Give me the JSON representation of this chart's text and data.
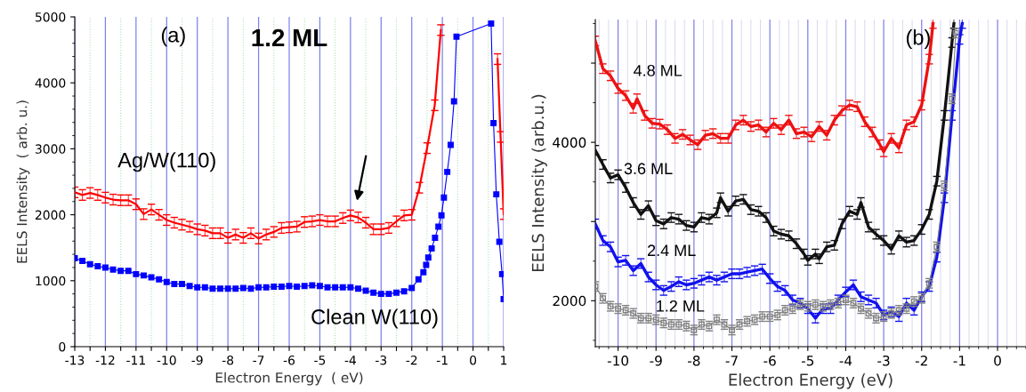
{
  "chart_data": [
    {
      "type": "line",
      "title": "1.2 ML",
      "xlabel": "Electron Energy  ( eV)",
      "ylabel": "EELS Intensity  ( arb. u.)",
      "xlim": [
        -13,
        1
      ],
      "ylim": [
        0,
        5000
      ],
      "xticks": [
        -13,
        {
          "value": -12.5,
          "label": null
        },
        -12,
        {
          "value": -11.5,
          "label": null
        },
        -11,
        {
          "value": -10.5,
          "label": null
        },
        -10,
        {
          "value": -9.5,
          "label": null
        },
        -9,
        {
          "value": -8.5,
          "label": null
        },
        -8,
        {
          "value": -7.5,
          "label": null
        },
        -7,
        {
          "value": -6.5,
          "label": null
        },
        -6,
        {
          "value": -5.5,
          "label": null
        },
        -5,
        {
          "value": -4.5,
          "label": null
        },
        -4,
        {
          "value": -3.5,
          "label": null
        },
        -3,
        {
          "value": -2.5,
          "label": null
        },
        -2,
        {
          "value": -1.5,
          "label": null
        },
        -1,
        {
          "value": -0.5,
          "label": null
        },
        0,
        {
          "value": 0.5,
          "label": null
        },
        1
      ],
      "yticks": [
        0,
        1000,
        2000,
        3000,
        4000,
        5000
      ],
      "grid": "x",
      "legend": false,
      "annotations": [
        "(a)",
        "Ag/W(110)",
        "Clean W(110)"
      ],
      "series": [
        {
          "color": "#ff0000",
          "marker": "none",
          "line_style": "solid",
          "x": [
            -13,
            -12.75,
            -12.5,
            -12.25,
            -12,
            -11.75,
            -11.5,
            -11.25,
            -11,
            -10.75,
            -10.5,
            -10.25,
            -10,
            -9.75,
            -9.5,
            -9.25,
            -9,
            -8.75,
            -8.5,
            -8.25,
            -8,
            -7.75,
            -7.5,
            -7.25,
            -7,
            -6.75,
            -6.5,
            -6.25,
            -6,
            -5.75,
            -5.5,
            -5.25,
            -5,
            -4.75,
            -4.5,
            -4.25,
            -4,
            -3.75,
            -3.5,
            -3.25,
            -3,
            -2.75,
            -2.5,
            -2.25,
            -2,
            -1.75,
            -1.5,
            -1.25,
            -1.05,
            0,
            0.8,
            0.9,
            1.0
          ],
          "values": [
            2340,
            2300,
            2330,
            2300,
            2260,
            2230,
            2220,
            2220,
            2160,
            2010,
            2080,
            2000,
            1920,
            1880,
            1850,
            1820,
            1780,
            1760,
            1720,
            1720,
            1650,
            1700,
            1650,
            1720,
            1640,
            1700,
            1740,
            1800,
            1810,
            1820,
            1890,
            1900,
            1920,
            1900,
            1900,
            1950,
            1990,
            1960,
            1880,
            1780,
            1780,
            1800,
            1900,
            1990,
            2000,
            2410,
            3010,
            3660,
            4800,
            null,
            4360,
            3180,
            2010
          ],
          "errors": [
            80,
            80,
            80,
            80,
            80,
            80,
            80,
            80,
            80,
            80,
            80,
            80,
            80,
            80,
            80,
            80,
            80,
            80,
            80,
            80,
            80,
            80,
            80,
            80,
            80,
            80,
            80,
            80,
            80,
            80,
            80,
            80,
            80,
            80,
            80,
            80,
            80,
            80,
            80,
            80,
            80,
            80,
            80,
            80,
            80,
            80,
            80,
            80,
            80,
            null,
            80,
            80,
            80
          ]
        },
        {
          "color": "#0000ff",
          "marker": "square",
          "line_style": "solid",
          "x": [
            -13,
            -12.75,
            -12.5,
            -12.25,
            -12,
            -11.75,
            -11.5,
            -11.25,
            -11,
            -10.75,
            -10.5,
            -10.25,
            -10,
            -9.75,
            -9.5,
            -9.25,
            -9,
            -8.75,
            -8.5,
            -8.25,
            -8,
            -7.75,
            -7.5,
            -7.25,
            -7,
            -6.75,
            -6.5,
            -6.25,
            -6,
            -5.75,
            -5.5,
            -5.25,
            -5,
            -4.75,
            -4.5,
            -4.25,
            -4,
            -3.75,
            -3.5,
            -3.25,
            -3,
            -2.75,
            -2.5,
            -2.25,
            -2,
            -1.78,
            -1.62,
            -1.53,
            -1.46,
            -1.35,
            -1.24,
            -1.13,
            -1.03,
            -0.95,
            -0.84,
            -0.73,
            -0.62,
            -0.54,
            0.59,
            0.67,
            0.76,
            0.86,
            0.95,
            1.0
          ],
          "values": [
            1340,
            1300,
            1250,
            1220,
            1200,
            1170,
            1150,
            1150,
            1100,
            1080,
            1050,
            1020,
            980,
            950,
            950,
            920,
            900,
            900,
            880,
            880,
            880,
            880,
            890,
            880,
            900,
            900,
            910,
            910,
            920,
            910,
            920,
            930,
            920,
            900,
            900,
            900,
            900,
            880,
            850,
            820,
            800,
            800,
            820,
            840,
            890,
            1020,
            1130,
            1240,
            1350,
            1490,
            1650,
            1820,
            1990,
            2260,
            2650,
            3060,
            3720,
            4700,
            4900,
            3390,
            2310,
            1590,
            1100,
            720
          ]
        }
      ]
    },
    {
      "type": "line",
      "xlabel": "Electron Energy (eV)",
      "ylabel": "EELS Intensity (arb.u.)",
      "xlim": [
        -10.6,
        0.75
      ],
      "ylim": [
        1420,
        5550
      ],
      "xticks": [
        -10,
        -9,
        -8,
        -7,
        -6,
        -5,
        -4,
        -3,
        -2,
        -1,
        0
      ],
      "yticks": [
        2000,
        {
          "value": 3000,
          "label": null
        },
        4000,
        {
          "value": 5000,
          "label": null
        }
      ],
      "grid": "x",
      "legend": false,
      "annotations": [
        "(b)",
        "4.8 ML",
        "3.6 ML",
        "2.4 ML",
        "1.2 ML"
      ],
      "series": [
        {
          "color": "#ee1111",
          "marker": "none",
          "line_style": "solid",
          "x": [
            -10.6,
            -10.4,
            -10.2,
            -10,
            -9.8,
            -9.6,
            -9.5,
            -9.3,
            -9.1,
            -8.9,
            -8.7,
            -8.5,
            -8.3,
            -8.1,
            -7.9,
            -7.7,
            -7.5,
            -7.3,
            -7.1,
            -6.9,
            -6.7,
            -6.5,
            -6.3,
            -6.1,
            -5.9,
            -5.7,
            -5.5,
            -5.3,
            -5.1,
            -4.9,
            -4.7,
            -4.5,
            -4.3,
            -4.1,
            -3.9,
            -3.7,
            -3.5,
            -3.3,
            -3.1,
            -3.0,
            -2.8,
            -2.6,
            -2.4,
            -2.2,
            -2.0,
            -1.8,
            -1.7
          ],
          "values": [
            5280,
            4930,
            4840,
            4680,
            4590,
            4430,
            4550,
            4340,
            4240,
            4230,
            4160,
            4050,
            4100,
            4030,
            3970,
            4090,
            4110,
            4050,
            4050,
            4220,
            4280,
            4200,
            4220,
            4130,
            4240,
            4160,
            4280,
            4110,
            4130,
            4070,
            4200,
            4090,
            4280,
            4400,
            4470,
            4450,
            4260,
            4130,
            3970,
            3880,
            4050,
            3930,
            4220,
            4260,
            4470,
            5050,
            5500
          ],
          "errors": [
            60,
            60,
            60,
            60,
            60,
            60,
            60,
            60,
            60,
            60,
            60,
            60,
            60,
            60,
            60,
            60,
            60,
            60,
            60,
            60,
            60,
            60,
            60,
            60,
            60,
            60,
            60,
            60,
            60,
            60,
            60,
            60,
            60,
            60,
            60,
            60,
            60,
            60,
            60,
            60,
            60,
            60,
            60,
            60,
            60,
            60,
            60
          ]
        },
        {
          "color": "#111111",
          "marker": "none",
          "line_style": "solid",
          "x": [
            -10.6,
            -10.4,
            -10.2,
            -10,
            -9.8,
            -9.6,
            -9.4,
            -9.2,
            -9.0,
            -8.8,
            -8.6,
            -8.4,
            -8.2,
            -8.0,
            -7.8,
            -7.6,
            -7.4,
            -7.3,
            -7.1,
            -6.9,
            -6.7,
            -6.5,
            -6.3,
            -6.1,
            -5.9,
            -5.7,
            -5.5,
            -5.3,
            -5.1,
            -5.0,
            -4.8,
            -4.7,
            -4.5,
            -4.3,
            -4.1,
            -3.9,
            -3.7,
            -3.6,
            -3.4,
            -3.2,
            -3.0,
            -2.8,
            -2.6,
            -2.4,
            -2.2,
            -2.0,
            -1.8,
            -1.6,
            -1.4,
            -1.2,
            -1.15
          ],
          "values": [
            3900,
            3720,
            3550,
            3590,
            3430,
            3240,
            3090,
            3200,
            3010,
            2970,
            3050,
            3030,
            2950,
            2930,
            3050,
            3030,
            3110,
            3300,
            3130,
            3260,
            3280,
            3150,
            3130,
            3050,
            2880,
            2840,
            2820,
            2720,
            2590,
            2510,
            2590,
            2530,
            2680,
            2700,
            2970,
            3130,
            3090,
            3240,
            2930,
            2840,
            2760,
            2650,
            2820,
            2740,
            2760,
            2900,
            3090,
            3510,
            4340,
            5260,
            5500
          ],
          "errors": [
            60,
            60,
            60,
            60,
            60,
            60,
            60,
            60,
            60,
            60,
            60,
            60,
            60,
            60,
            60,
            60,
            60,
            60,
            60,
            60,
            60,
            60,
            60,
            60,
            60,
            60,
            60,
            60,
            60,
            60,
            60,
            60,
            60,
            60,
            60,
            60,
            60,
            60,
            60,
            60,
            60,
            60,
            60,
            60,
            60,
            60,
            60,
            60,
            60,
            60,
            60
          ]
        },
        {
          "color": "#1111ee",
          "marker": "none",
          "line_style": "solid",
          "x": [
            -10.6,
            -10.4,
            -10.2,
            -10.0,
            -9.8,
            -9.6,
            -9.4,
            -9.2,
            -9.0,
            -8.8,
            -8.6,
            -8.4,
            -8.2,
            -8.0,
            -7.8,
            -7.6,
            -7.4,
            -7.2,
            -7.0,
            -6.8,
            -6.6,
            -6.4,
            -6.2,
            -6.0,
            -5.8,
            -5.6,
            -5.4,
            -5.2,
            -5.0,
            -4.8,
            -4.6,
            -4.4,
            -4.2,
            -4.0,
            -3.8,
            -3.6,
            -3.4,
            -3.2,
            -3.0,
            -2.8,
            -2.6,
            -2.4,
            -2.2,
            -2.0,
            -1.8,
            -1.6,
            -1.4,
            -1.2,
            -1.0,
            -0.93
          ],
          "values": [
            2970,
            2760,
            2680,
            2490,
            2510,
            2380,
            2470,
            2300,
            2200,
            2130,
            2180,
            2240,
            2200,
            2220,
            2260,
            2300,
            2260,
            2300,
            2340,
            2340,
            2360,
            2380,
            2400,
            2280,
            2180,
            2130,
            2010,
            1970,
            1900,
            1780,
            1900,
            1900,
            2010,
            2110,
            2200,
            2050,
            2010,
            1970,
            1820,
            1860,
            1800,
            1970,
            1880,
            2050,
            2180,
            2550,
            3300,
            4340,
            5300,
            5500
          ],
          "errors": [
            60,
            60,
            60,
            60,
            60,
            60,
            60,
            60,
            60,
            60,
            60,
            60,
            60,
            60,
            60,
            60,
            60,
            60,
            60,
            60,
            60,
            60,
            60,
            60,
            60,
            60,
            60,
            60,
            60,
            60,
            60,
            60,
            60,
            60,
            60,
            60,
            60,
            60,
            60,
            60,
            60,
            60,
            60,
            60,
            60,
            60,
            60,
            60,
            60,
            60
          ]
        },
        {
          "color": "#808080",
          "marker": "square",
          "line_style": "solid",
          "x": [
            -10.6,
            -10.4,
            -10.2,
            -10.0,
            -9.8,
            -9.6,
            -9.4,
            -9.2,
            -9.0,
            -8.8,
            -8.6,
            -8.4,
            -8.2,
            -8.0,
            -7.8,
            -7.6,
            -7.4,
            -7.2,
            -7.0,
            -6.8,
            -6.6,
            -6.4,
            -6.2,
            -6.0,
            -5.8,
            -5.6,
            -5.4,
            -5.2,
            -5.0,
            -4.8,
            -4.6,
            -4.4,
            -4.2,
            -4.0,
            -3.8,
            -3.6,
            -3.4,
            -3.2,
            -3.0,
            -2.8,
            -2.6,
            -2.4,
            -2.2,
            -2.0,
            -1.8,
            -1.6,
            -1.4,
            -1.2,
            -1.1
          ],
          "values": [
            2180,
            2030,
            1930,
            1900,
            1880,
            1840,
            1780,
            1780,
            1760,
            1720,
            1700,
            1700,
            1680,
            1630,
            1700,
            1680,
            1760,
            1700,
            1630,
            1700,
            1740,
            1760,
            1800,
            1800,
            1820,
            1880,
            1900,
            1950,
            1930,
            1950,
            1930,
            1950,
            1970,
            2010,
            1970,
            1900,
            1840,
            1780,
            1800,
            1840,
            1880,
            1900,
            1990,
            2030,
            2220,
            2680,
            3450,
            4550,
            5380
          ],
          "errors": [
            60,
            60,
            60,
            60,
            60,
            60,
            60,
            60,
            60,
            60,
            60,
            60,
            60,
            60,
            60,
            60,
            60,
            60,
            60,
            60,
            60,
            60,
            60,
            60,
            60,
            60,
            60,
            60,
            60,
            60,
            60,
            60,
            60,
            60,
            60,
            60,
            60,
            60,
            60,
            60,
            60,
            60,
            60,
            60,
            60,
            60,
            60,
            60,
            60
          ]
        }
      ]
    }
  ]
}
